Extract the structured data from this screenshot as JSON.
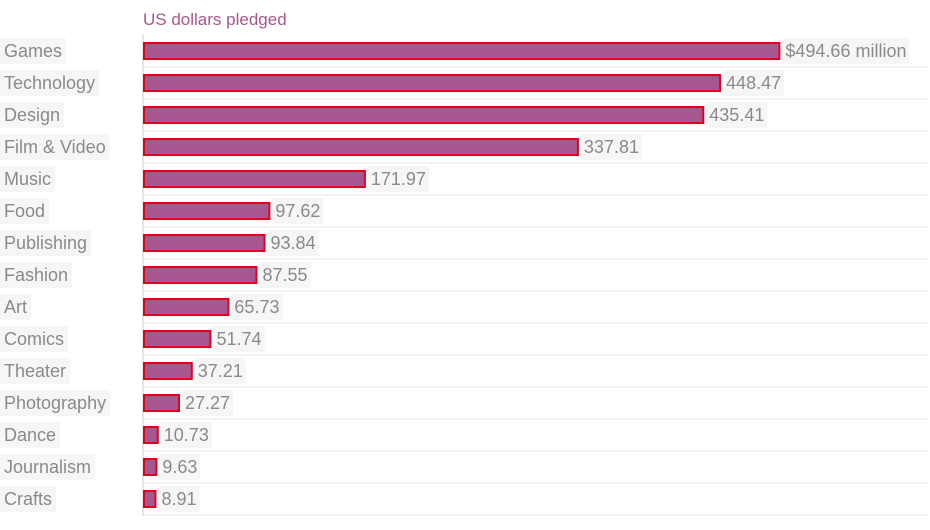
{
  "chart_data": {
    "type": "bar",
    "orientation": "horizontal",
    "title": "US dollars pledged",
    "xlabel": "",
    "ylabel": "",
    "categories": [
      "Games",
      "Technology",
      "Design",
      "Film & Video",
      "Music",
      "Food",
      "Publishing",
      "Fashion",
      "Art",
      "Comics",
      "Theater",
      "Photography",
      "Dance",
      "Journalism",
      "Crafts"
    ],
    "values": [
      494.66,
      448.47,
      435.41,
      337.81,
      171.97,
      97.62,
      93.84,
      87.55,
      65.73,
      51.74,
      37.21,
      27.27,
      10.73,
      9.63,
      8.91
    ],
    "value_labels": [
      "$494.66 million",
      "448.47",
      "435.41",
      "337.81",
      "171.97",
      "97.62",
      "93.84",
      "87.55",
      "65.73",
      "51.74",
      "37.21",
      "27.27",
      "10.73",
      "9.63",
      "8.91"
    ],
    "xlim": [
      0,
      500
    ],
    "grid": true,
    "legend": "none",
    "colors": {
      "bar_fill": "#a8568f",
      "bar_stroke": "#e3001b",
      "title": "#a8568f",
      "label_text": "#8a8a8a",
      "label_bg": "#f6f6f6",
      "gridline": "#e8e8e8",
      "axis": "#cccccc"
    }
  }
}
